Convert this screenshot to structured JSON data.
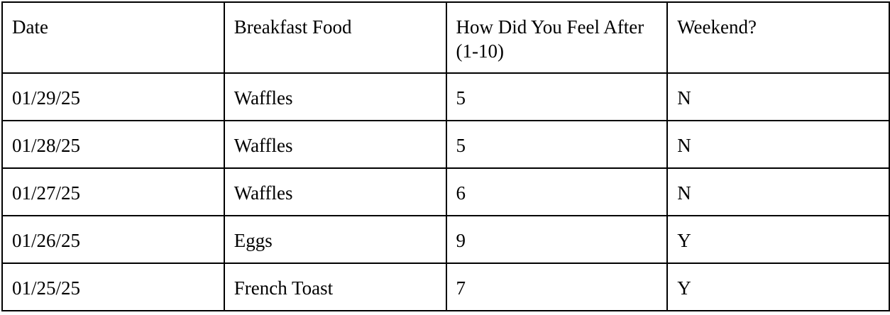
{
  "table": {
    "headers": [
      "Date",
      "Breakfast Food",
      "How Did You Feel After (1-10)",
      "Weekend?"
    ],
    "rows": [
      [
        "01/29/25",
        "Waffles",
        "5",
        "N"
      ],
      [
        "01/28/25",
        "Waffles",
        "5",
        "N"
      ],
      [
        "01/27/25",
        "Waffles",
        "6",
        "N"
      ],
      [
        "01/26/25",
        "Eggs",
        "9",
        "Y"
      ],
      [
        "01/25/25",
        "French Toast",
        "7",
        "Y"
      ]
    ]
  }
}
